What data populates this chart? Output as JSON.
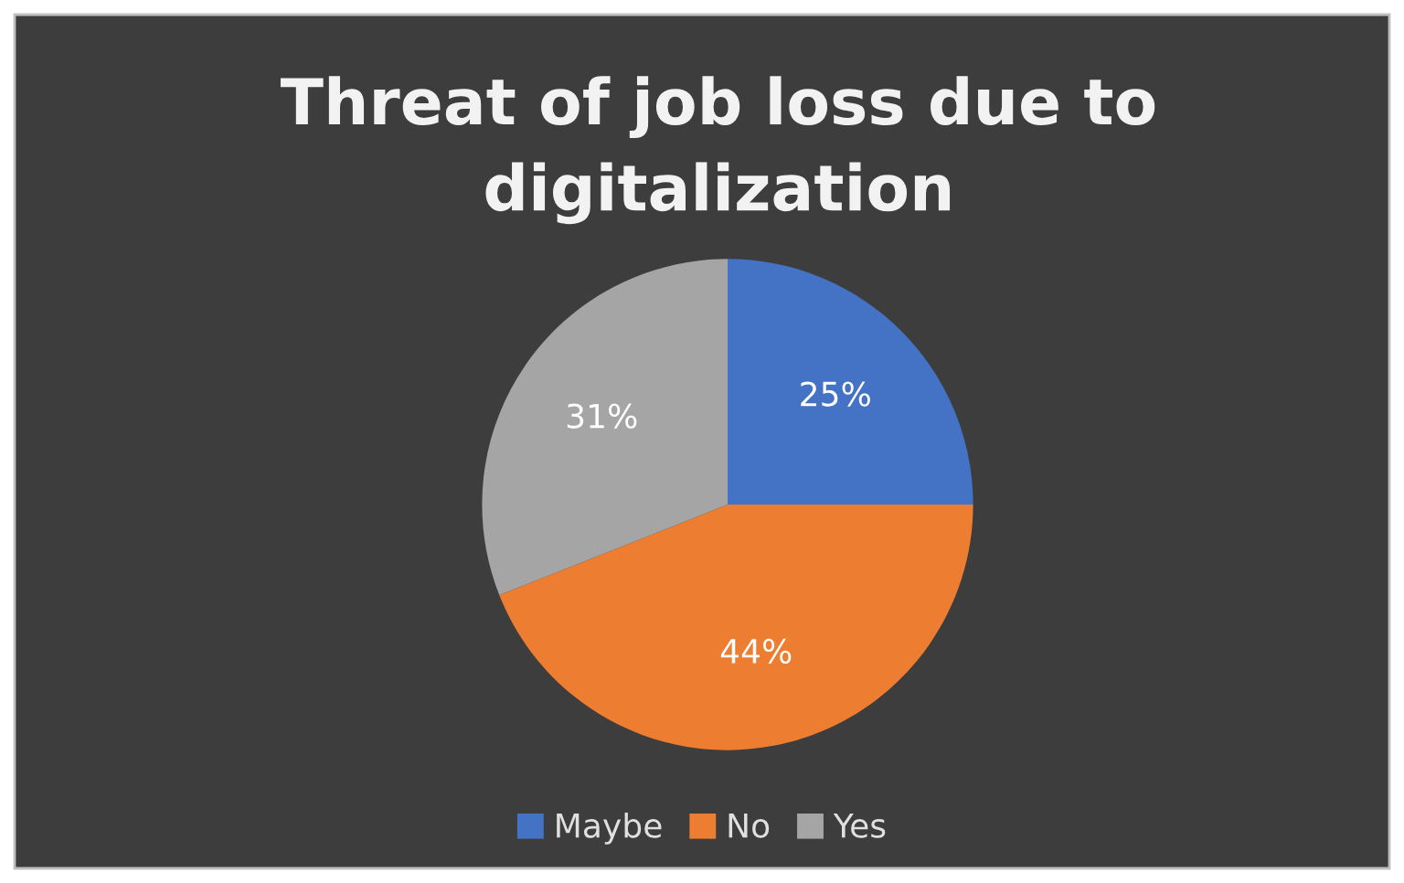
{
  "chart_data": {
    "type": "pie",
    "title": "Threat of job loss due to digitalization",
    "categories": [
      "Maybe",
      "No",
      "Yes"
    ],
    "values": [
      25,
      44,
      31
    ],
    "colors": [
      "#4472c4",
      "#ed7d31",
      "#a5a5a5"
    ],
    "value_labels": [
      "25%",
      "44%",
      "31%"
    ],
    "legend": "bottom"
  }
}
